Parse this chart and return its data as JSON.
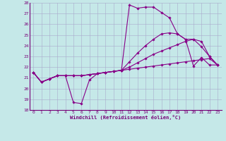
{
  "xlabel": "Windchill (Refroidissement éolien,°C)",
  "xlim": [
    -0.5,
    23.5
  ],
  "ylim": [
    18,
    28
  ],
  "xticks": [
    0,
    1,
    2,
    3,
    4,
    5,
    6,
    7,
    8,
    9,
    10,
    11,
    12,
    13,
    14,
    15,
    16,
    17,
    18,
    19,
    20,
    21,
    22,
    23
  ],
  "yticks": [
    18,
    19,
    20,
    21,
    22,
    23,
    24,
    25,
    26,
    27,
    28
  ],
  "bg_color": "#c5e8e8",
  "grid_color": "#aaaacc",
  "line_color": "#880088",
  "lines": [
    [
      21.5,
      20.6,
      20.9,
      21.2,
      21.2,
      18.7,
      18.6,
      20.8,
      21.4,
      21.5,
      21.6,
      21.7,
      27.8,
      27.5,
      27.6,
      27.6,
      27.1,
      26.6,
      25.1,
      24.6,
      22.1,
      22.9,
      22.2,
      22.2
    ],
    [
      21.5,
      20.6,
      20.9,
      21.2,
      21.2,
      21.2,
      21.2,
      21.3,
      21.4,
      21.5,
      21.6,
      21.7,
      21.8,
      21.9,
      22.0,
      22.1,
      22.2,
      22.3,
      22.4,
      22.5,
      22.6,
      22.7,
      22.8,
      22.2
    ],
    [
      21.5,
      20.6,
      20.9,
      21.2,
      21.2,
      21.2,
      21.2,
      21.3,
      21.4,
      21.5,
      21.6,
      21.7,
      22.0,
      22.4,
      22.8,
      23.2,
      23.5,
      23.8,
      24.1,
      24.4,
      24.6,
      24.4,
      23.0,
      22.2
    ],
    [
      21.5,
      20.6,
      20.9,
      21.2,
      21.2,
      21.2,
      21.2,
      21.3,
      21.4,
      21.5,
      21.6,
      21.7,
      22.5,
      23.3,
      24.0,
      24.6,
      25.1,
      25.2,
      25.1,
      24.6,
      24.6,
      23.9,
      23.0,
      22.2
    ]
  ]
}
